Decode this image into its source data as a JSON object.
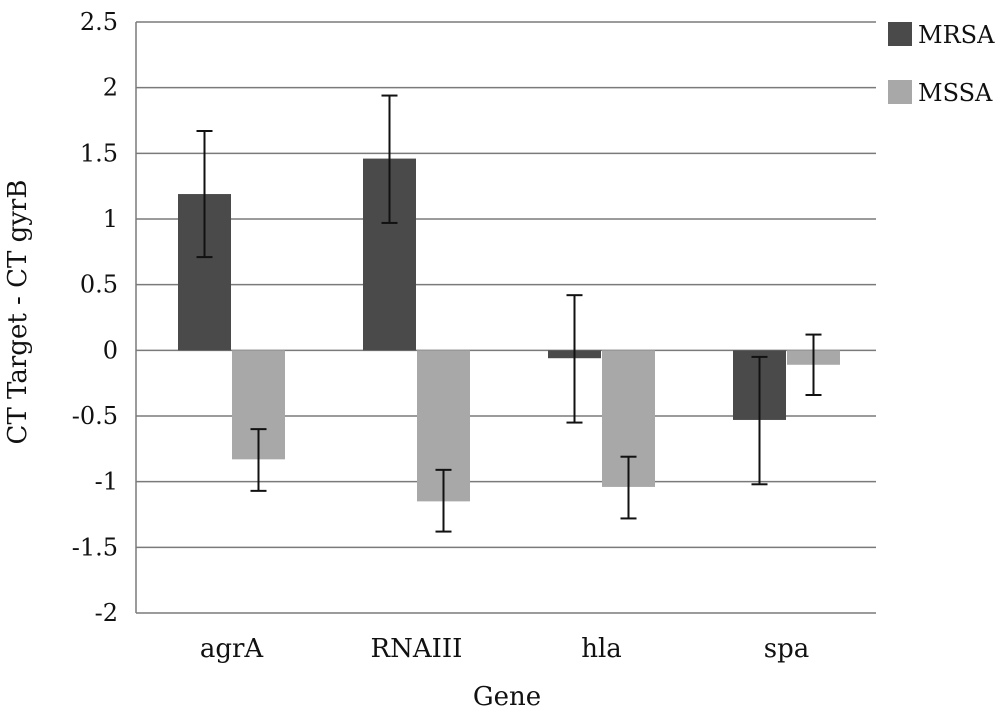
{
  "chart_data": {
    "type": "bar",
    "title": "",
    "xlabel": "Gene",
    "ylabel": "CT Target - CT gyrB",
    "categories": [
      "agrA",
      "RNAIII",
      "hla",
      "spa"
    ],
    "ylim": [
      -2,
      2.5
    ],
    "yticks": [
      2.5,
      2,
      1.5,
      1,
      0.5,
      0,
      -0.5,
      -1,
      -1.5,
      -2
    ],
    "ytick_labels": [
      "2.5",
      "2",
      "1.5",
      "1",
      "0.5",
      "0",
      "-0.5",
      "-1",
      "-1.5",
      "-2"
    ],
    "grid": true,
    "legend_position": "top-right",
    "series": [
      {
        "name": "MRSA",
        "color": "#4a4a4a",
        "values": [
          1.19,
          1.46,
          -0.06,
          -0.53
        ],
        "err_low": [
          0.71,
          0.97,
          -0.55,
          -1.02
        ],
        "err_high": [
          1.67,
          1.94,
          0.42,
          -0.05
        ]
      },
      {
        "name": "MSSA",
        "color": "#a8a8a8",
        "values": [
          -0.83,
          -1.15,
          -1.04,
          -0.11
        ],
        "err_low": [
          -1.07,
          -1.38,
          -1.28,
          -0.34
        ],
        "err_high": [
          -0.6,
          -0.91,
          -0.81,
          0.12
        ]
      }
    ]
  }
}
